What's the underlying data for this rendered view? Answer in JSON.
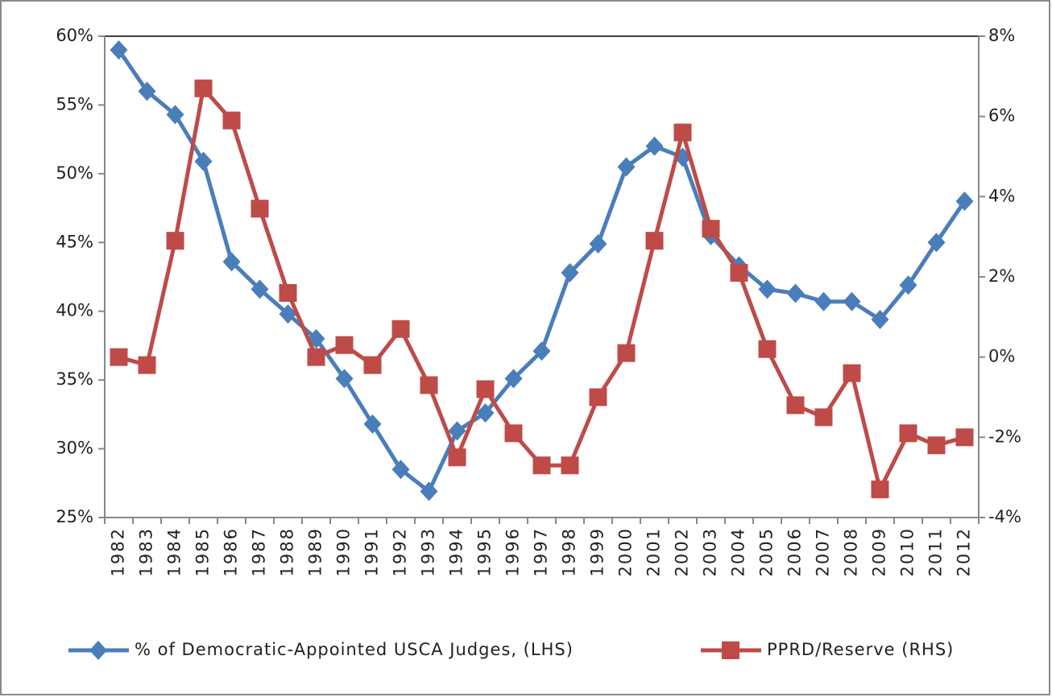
{
  "chart_data": {
    "type": "line",
    "categories": [
      "1982",
      "1983",
      "1984",
      "1985",
      "1986",
      "1987",
      "1988",
      "1989",
      "1990",
      "1991",
      "1992",
      "1993",
      "1994",
      "1995",
      "1996",
      "1997",
      "1998",
      "1999",
      "2000",
      "2001",
      "2002",
      "2003",
      "2004",
      "2005",
      "2006",
      "2007",
      "2008",
      "2009",
      "2010",
      "2011",
      "2012"
    ],
    "series": [
      {
        "name": "% of Democratic-Appointed USCA Judges, (LHS)",
        "color": "#4a7ebb",
        "marker": "diamond",
        "values": [
          59.0,
          56.0,
          54.3,
          50.9,
          43.6,
          41.6,
          39.8,
          38.0,
          35.1,
          31.8,
          28.5,
          26.9,
          31.3,
          32.6,
          35.1,
          37.1,
          42.8,
          44.9,
          50.5,
          52.0,
          51.2,
          45.5,
          43.3,
          41.6,
          41.3,
          40.7,
          40.7,
          39.4,
          41.9,
          45.0,
          48.0
        ]
      },
      {
        "name": "PPRD/Reserve (RHS)",
        "color": "#be4b48",
        "marker": "square",
        "axis": "y2",
        "values": [
          0.0,
          -0.2,
          2.9,
          6.7,
          5.9,
          3.7,
          1.6,
          0.0,
          0.3,
          -0.2,
          0.7,
          -0.7,
          -2.5,
          -0.8,
          -1.9,
          -2.7,
          -2.7,
          -1.0,
          0.1,
          2.9,
          5.6,
          3.2,
          2.1,
          0.2,
          -1.2,
          -1.5,
          -0.4,
          -3.3,
          -1.9,
          -2.2,
          -2.0
        ]
      }
    ],
    "ylim": [
      25,
      60
    ],
    "yticks": [
      {
        "value": 25,
        "label": "25%"
      },
      {
        "value": 30,
        "label": "30%"
      },
      {
        "value": 35,
        "label": "35%"
      },
      {
        "value": 40,
        "label": "40%"
      },
      {
        "value": 45,
        "label": "45%"
      },
      {
        "value": 50,
        "label": "50%"
      },
      {
        "value": 55,
        "label": "55%"
      },
      {
        "value": 60,
        "label": "60%"
      }
    ],
    "y2lim": [
      -4,
      8
    ],
    "y2ticks": [
      {
        "value": -4,
        "label": "-4%"
      },
      {
        "value": -2,
        "label": "-2%"
      },
      {
        "value": 0,
        "label": "0%"
      },
      {
        "value": 2,
        "label": "2%"
      },
      {
        "value": 4,
        "label": "4%"
      },
      {
        "value": 6,
        "label": "6%"
      },
      {
        "value": 8,
        "label": "8%"
      }
    ],
    "grid": false,
    "legend": "bottom"
  }
}
